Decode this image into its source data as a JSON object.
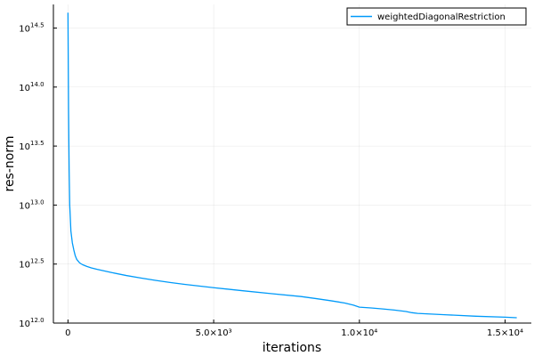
{
  "chart_data": {
    "type": "line",
    "xlabel": "iterations",
    "ylabel": "res-norm",
    "xlim": [
      -500,
      15900
    ],
    "ylim_log10": [
      12.0,
      14.7
    ],
    "y_scale": "log10",
    "grid": true,
    "legend_placement": "top-right",
    "xticks": [
      {
        "value": 0,
        "label": "0"
      },
      {
        "value": 5000,
        "label": "5.0×10³"
      },
      {
        "value": 10000,
        "label": "1.0×10⁴"
      },
      {
        "value": 15000,
        "label": "1.5×10⁴"
      }
    ],
    "yticks": [
      {
        "value": 12.0,
        "base": "10",
        "exp": "12.0"
      },
      {
        "value": 12.5,
        "base": "10",
        "exp": "12.5"
      },
      {
        "value": 13.0,
        "base": "10",
        "exp": "13.0"
      },
      {
        "value": 13.5,
        "base": "10",
        "exp": "13.5"
      },
      {
        "value": 14.0,
        "base": "10",
        "exp": "14.0"
      },
      {
        "value": 14.5,
        "base": "10",
        "exp": "14.5"
      }
    ],
    "series": [
      {
        "name": "weightedDiagonalRestriction",
        "color": "#009af9",
        "x": [
          0,
          10,
          20,
          40,
          60,
          100,
          150,
          200,
          250,
          300,
          400,
          500,
          650,
          800,
          1000,
          1500,
          2000,
          2500,
          3000,
          3500,
          4000,
          5000,
          6000,
          7000,
          8000,
          8500,
          9000,
          9500,
          9800,
          10000,
          10400,
          10800,
          11200,
          11600,
          11800,
          12000,
          13000,
          14000,
          15000,
          15400
        ],
        "y_log10": [
          14.63,
          14.2,
          13.8,
          13.3,
          13.0,
          12.78,
          12.68,
          12.62,
          12.57,
          12.54,
          12.51,
          12.495,
          12.48,
          12.468,
          12.455,
          12.428,
          12.403,
          12.382,
          12.362,
          12.344,
          12.328,
          12.3,
          12.274,
          12.249,
          12.225,
          12.208,
          12.19,
          12.17,
          12.152,
          12.135,
          12.128,
          12.12,
          12.11,
          12.098,
          12.088,
          12.082,
          12.07,
          12.058,
          12.05,
          12.045
        ]
      }
    ]
  }
}
